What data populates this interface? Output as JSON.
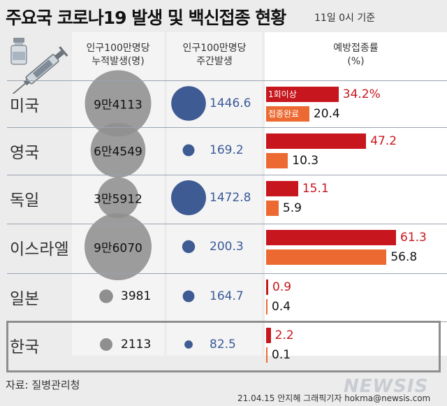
{
  "title": "주요국 코로나19 발생 및 백신접종 현황",
  "basis": "11일 0시 기준",
  "colors": {
    "bubble_gray": "#8f8f8f",
    "bubble_blue": "#3f5b93",
    "bar_red": "#c8161e",
    "bar_orange": "#ec6a32"
  },
  "source": "자료: 질병관리청",
  "credit": "21.04.15 안지혜 그래픽기자 hokma@newsis.com",
  "logo": "NEWSIS",
  "icon": "vaccine-syringe-icon",
  "chart_data": {
    "type": "table",
    "columns": [
      "인구100만명당\n누적발생(명)",
      "인구100만명당\n주간발생",
      "예방접종률\n(%)"
    ],
    "legend": {
      "first_dose": "1회이상",
      "complete": "접종완료"
    },
    "rows": [
      {
        "country": "미국",
        "cumulative": 94113,
        "cumulative_label": "9만4113",
        "weekly": 1446.6,
        "weekly_label": "1446.6",
        "first_dose": 34.2,
        "first_dose_label": "34.2%",
        "complete": 20.4,
        "complete_label": "20.4"
      },
      {
        "country": "영국",
        "cumulative": 64549,
        "cumulative_label": "6만4549",
        "weekly": 169.2,
        "weekly_label": "169.2",
        "first_dose": 47.2,
        "first_dose_label": "47.2",
        "complete": 10.3,
        "complete_label": "10.3"
      },
      {
        "country": "독일",
        "cumulative": 35912,
        "cumulative_label": "3만5912",
        "weekly": 1472.8,
        "weekly_label": "1472.8",
        "first_dose": 15.1,
        "first_dose_label": "15.1",
        "complete": 5.9,
        "complete_label": "5.9"
      },
      {
        "country": "이스라엘",
        "cumulative": 96070,
        "cumulative_label": "9만6070",
        "weekly": 200.3,
        "weekly_label": "200.3",
        "first_dose": 61.3,
        "first_dose_label": "61.3",
        "complete": 56.8,
        "complete_label": "56.8"
      },
      {
        "country": "일본",
        "cumulative": 3981,
        "cumulative_label": "3981",
        "weekly": 164.7,
        "weekly_label": "164.7",
        "first_dose": 0.9,
        "first_dose_label": "0.9",
        "complete": 0.4,
        "complete_label": "0.4"
      },
      {
        "country": "한국",
        "cumulative": 2113,
        "cumulative_label": "2113",
        "weekly": 82.5,
        "weekly_label": "82.5",
        "first_dose": 2.2,
        "first_dose_label": "2.2",
        "complete": 0.1,
        "complete_label": "0.1"
      }
    ]
  }
}
